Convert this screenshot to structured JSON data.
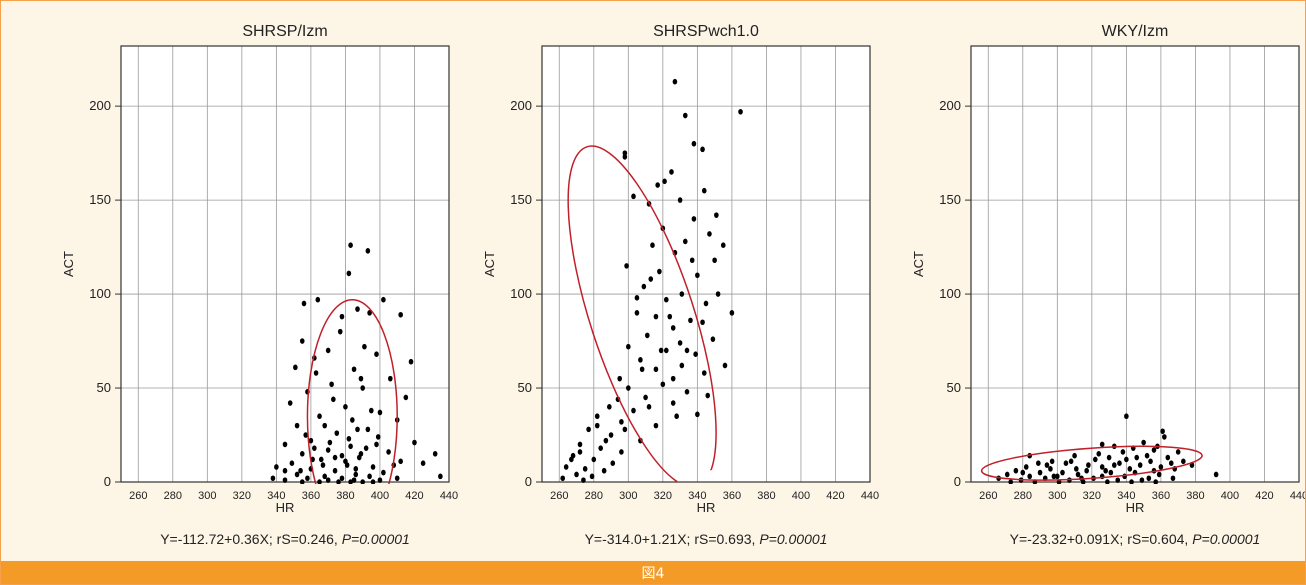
{
  "caption": "図4",
  "colors": {
    "frame": "#f6a04a",
    "background": "#fdf6e7",
    "caption_bar": "#f39a27",
    "ellipse": "#c0202a",
    "dots": "#000000"
  },
  "chart_data": [
    {
      "type": "scatter",
      "title": "SHRSP/Izm",
      "xlabel": "HR",
      "ylabel": "ACT",
      "xlim": [
        250,
        440
      ],
      "ylim": [
        0,
        232
      ],
      "xticks": [
        "260",
        "280",
        "300",
        "320",
        "340",
        "360",
        "380",
        "400",
        "420",
        "440"
      ],
      "yticks": [
        "0",
        "50",
        "100",
        "150",
        "200"
      ],
      "grid": true,
      "ellipse": {
        "cx": 384,
        "cy": 35,
        "rx": 26,
        "ry": 62
      },
      "formula": "Y=-112.72+0.36X; rS=0.246, ",
      "p_value": "P=0.00001",
      "points": [
        [
          383,
          126
        ],
        [
          393,
          123
        ],
        [
          382,
          111
        ],
        [
          356,
          95
        ],
        [
          364,
          97
        ],
        [
          402,
          97
        ],
        [
          387,
          92
        ],
        [
          394,
          90
        ],
        [
          412,
          89
        ],
        [
          378,
          88
        ],
        [
          345,
          6
        ],
        [
          355,
          75
        ],
        [
          370,
          70
        ],
        [
          398,
          68
        ],
        [
          362,
          66
        ],
        [
          418,
          64
        ],
        [
          351,
          61
        ],
        [
          385,
          60
        ],
        [
          406,
          55
        ],
        [
          372,
          52
        ],
        [
          390,
          50
        ],
        [
          358,
          48
        ],
        [
          415,
          45
        ],
        [
          348,
          42
        ],
        [
          380,
          40
        ],
        [
          395,
          38
        ],
        [
          365,
          35
        ],
        [
          410,
          33
        ],
        [
          352,
          30
        ],
        [
          387,
          28
        ],
        [
          375,
          26
        ],
        [
          399,
          24
        ],
        [
          360,
          22
        ],
        [
          420,
          21
        ],
        [
          345,
          20
        ],
        [
          383,
          19
        ],
        [
          392,
          18
        ],
        [
          370,
          17
        ],
        [
          405,
          16
        ],
        [
          355,
          15
        ],
        [
          378,
          14
        ],
        [
          388,
          13
        ],
        [
          366,
          12
        ],
        [
          412,
          11
        ],
        [
          349,
          10
        ],
        [
          381,
          9
        ],
        [
          396,
          8
        ],
        [
          360,
          7
        ],
        [
          374,
          6
        ],
        [
          402,
          5
        ],
        [
          352,
          4
        ],
        [
          386,
          4
        ],
        [
          368,
          3
        ],
        [
          394,
          3
        ],
        [
          378,
          2
        ],
        [
          358,
          2
        ],
        [
          410,
          2
        ],
        [
          385,
          1
        ],
        [
          370,
          1
        ],
        [
          345,
          1
        ],
        [
          400,
          1
        ],
        [
          390,
          0
        ],
        [
          365,
          0
        ],
        [
          376,
          0
        ],
        [
          355,
          0
        ],
        [
          383,
          0
        ],
        [
          396,
          0
        ],
        [
          432,
          15
        ],
        [
          435,
          3
        ],
        [
          425,
          10
        ],
        [
          338,
          2
        ],
        [
          340,
          8
        ],
        [
          373,
          44
        ],
        [
          389,
          55
        ],
        [
          363,
          58
        ],
        [
          377,
          80
        ],
        [
          391,
          72
        ],
        [
          368,
          30
        ],
        [
          384,
          33
        ],
        [
          400,
          37
        ],
        [
          357,
          25
        ],
        [
          393,
          28
        ],
        [
          371,
          21
        ],
        [
          382,
          23
        ],
        [
          362,
          18
        ],
        [
          398,
          20
        ],
        [
          380,
          11
        ],
        [
          367,
          9
        ],
        [
          386,
          7
        ],
        [
          354,
          6
        ],
        [
          408,
          9
        ],
        [
          374,
          13
        ],
        [
          389,
          15
        ],
        [
          361,
          12
        ]
      ]
    },
    {
      "type": "scatter",
      "title": "SHRSPwch1.0",
      "xlabel": "HR",
      "ylabel": "ACT",
      "xlim": [
        250,
        440
      ],
      "ylim": [
        0,
        232
      ],
      "xticks": [
        "260",
        "280",
        "300",
        "320",
        "340",
        "360",
        "380",
        "400",
        "420",
        "440"
      ],
      "yticks": [
        "0",
        "50",
        "100",
        "150",
        "200"
      ],
      "grid": true,
      "ellipse": {
        "cx": 308,
        "cy": 88,
        "rx": 30,
        "ry": 95,
        "rotate": -18
      },
      "formula": "Y=-314.0+1.21X; rS=0.693, ",
      "p_value": "P=0.00001",
      "points": [
        [
          327,
          213
        ],
        [
          365,
          197
        ],
        [
          333,
          195
        ],
        [
          298,
          175
        ],
        [
          298,
          173
        ],
        [
          338,
          180
        ],
        [
          343,
          177
        ],
        [
          325,
          165
        ],
        [
          321,
          160
        ],
        [
          317,
          158
        ],
        [
          330,
          150
        ],
        [
          344,
          155
        ],
        [
          312,
          148
        ],
        [
          303,
          152
        ],
        [
          338,
          140
        ],
        [
          320,
          135
        ],
        [
          333,
          128
        ],
        [
          314,
          126
        ],
        [
          327,
          122
        ],
        [
          350,
          118
        ],
        [
          299,
          115
        ],
        [
          318,
          112
        ],
        [
          340,
          110
        ],
        [
          309,
          104
        ],
        [
          331,
          100
        ],
        [
          322,
          97
        ],
        [
          345,
          95
        ],
        [
          305,
          90
        ],
        [
          316,
          88
        ],
        [
          336,
          86
        ],
        [
          326,
          82
        ],
        [
          311,
          78
        ],
        [
          349,
          76
        ],
        [
          300,
          72
        ],
        [
          322,
          70
        ],
        [
          339,
          68
        ],
        [
          307,
          65
        ],
        [
          331,
          62
        ],
        [
          316,
          60
        ],
        [
          344,
          58
        ],
        [
          295,
          55
        ],
        [
          320,
          52
        ],
        [
          300,
          50
        ],
        [
          334,
          48
        ],
        [
          310,
          45
        ],
        [
          326,
          42
        ],
        [
          289,
          40
        ],
        [
          303,
          38
        ],
        [
          340,
          36
        ],
        [
          282,
          35
        ],
        [
          296,
          32
        ],
        [
          316,
          30
        ],
        [
          277,
          28
        ],
        [
          290,
          25
        ],
        [
          307,
          22
        ],
        [
          272,
          20
        ],
        [
          284,
          18
        ],
        [
          296,
          16
        ],
        [
          268,
          14
        ],
        [
          280,
          12
        ],
        [
          291,
          10
        ],
        [
          264,
          8
        ],
        [
          275,
          7
        ],
        [
          286,
          6
        ],
        [
          270,
          4
        ],
        [
          279,
          3
        ],
        [
          262,
          2
        ],
        [
          274,
          1
        ],
        [
          267,
          12
        ],
        [
          272,
          16
        ],
        [
          287,
          22
        ],
        [
          298,
          28
        ],
        [
          312,
          40
        ],
        [
          326,
          55
        ],
        [
          334,
          70
        ],
        [
          343,
          85
        ],
        [
          352,
          100
        ],
        [
          360,
          90
        ],
        [
          356,
          62
        ],
        [
          346,
          46
        ],
        [
          328,
          35
        ],
        [
          319,
          70
        ],
        [
          305,
          98
        ],
        [
          313,
          108
        ],
        [
          337,
          118
        ],
        [
          347,
          132
        ],
        [
          351,
          142
        ],
        [
          355,
          126
        ],
        [
          324,
          88
        ],
        [
          330,
          74
        ],
        [
          308,
          60
        ],
        [
          294,
          44
        ],
        [
          282,
          30
        ]
      ]
    },
    {
      "type": "scatter",
      "title": "WKY/Izm",
      "xlabel": "HR",
      "ylabel": "ACT",
      "xlim": [
        250,
        440
      ],
      "ylim": [
        0,
        232
      ],
      "xticks": [
        "260",
        "280",
        "300",
        "320",
        "340",
        "360",
        "380",
        "400",
        "420",
        "440"
      ],
      "yticks": [
        "0",
        "50",
        "100",
        "150",
        "200"
      ],
      "grid": true,
      "ellipse": {
        "cx": 320,
        "cy": 10,
        "rx": 64,
        "ry": 8,
        "rotate": -4
      },
      "formula": "Y=-23.32+0.091X; rS=0.604, ",
      "p_value": "P=0.00001",
      "points": [
        [
          340,
          35
        ],
        [
          361,
          27
        ],
        [
          362,
          24
        ],
        [
          350,
          21
        ],
        [
          326,
          20
        ],
        [
          333,
          19
        ],
        [
          344,
          18
        ],
        [
          356,
          17
        ],
        [
          284,
          14
        ],
        [
          370,
          16
        ],
        [
          310,
          14
        ],
        [
          330,
          13
        ],
        [
          352,
          14
        ],
        [
          364,
          13
        ],
        [
          297,
          11
        ],
        [
          322,
          12
        ],
        [
          340,
          12
        ],
        [
          373,
          11
        ],
        [
          289,
          10
        ],
        [
          305,
          10
        ],
        [
          318,
          9
        ],
        [
          336,
          10
        ],
        [
          348,
          9
        ],
        [
          360,
          8
        ],
        [
          378,
          9
        ],
        [
          282,
          8
        ],
        [
          296,
          7
        ],
        [
          311,
          7
        ],
        [
          326,
          8
        ],
        [
          342,
          7
        ],
        [
          356,
          6
        ],
        [
          368,
          7
        ],
        [
          276,
          6
        ],
        [
          290,
          5
        ],
        [
          303,
          5
        ],
        [
          317,
          6
        ],
        [
          331,
          5
        ],
        [
          345,
          5
        ],
        [
          359,
          4
        ],
        [
          271,
          4
        ],
        [
          284,
          3
        ],
        [
          298,
          3
        ],
        [
          312,
          4
        ],
        [
          326,
          3
        ],
        [
          339,
          3
        ],
        [
          353,
          2
        ],
        [
          367,
          2
        ],
        [
          266,
          2
        ],
        [
          279,
          1
        ],
        [
          293,
          2
        ],
        [
          307,
          1
        ],
        [
          321,
          2
        ],
        [
          335,
          1
        ],
        [
          349,
          1
        ],
        [
          273,
          0
        ],
        [
          287,
          0
        ],
        [
          301,
          0
        ],
        [
          315,
          0
        ],
        [
          329,
          0
        ],
        [
          343,
          0
        ],
        [
          357,
          0
        ],
        [
          392,
          4
        ],
        [
          280,
          5
        ],
        [
          294,
          9
        ],
        [
          308,
          11
        ],
        [
          324,
          15
        ],
        [
          338,
          16
        ],
        [
          354,
          11
        ],
        [
          366,
          10
        ],
        [
          300,
          3
        ],
        [
          314,
          2
        ],
        [
          328,
          6
        ],
        [
          346,
          13
        ],
        [
          358,
          19
        ],
        [
          333,
          9
        ]
      ]
    }
  ]
}
